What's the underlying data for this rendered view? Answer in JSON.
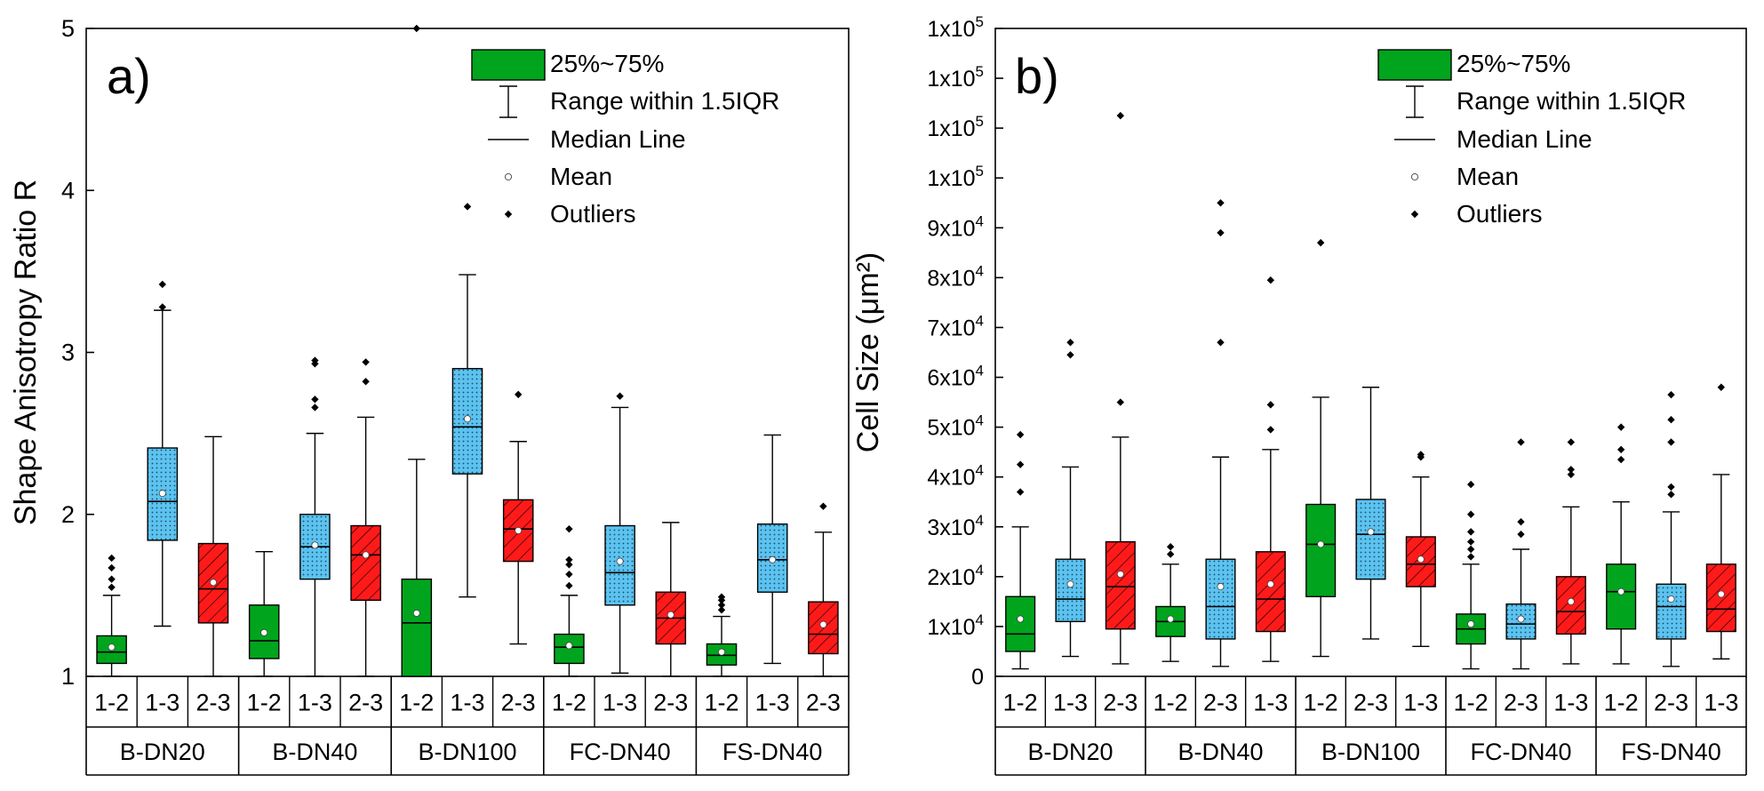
{
  "colors": {
    "green": "#00a51d",
    "blue": "#5cc3f0",
    "red": "#ff1a1a",
    "stroke": "#000000",
    "background": "#ffffff"
  },
  "chart_data": [
    {
      "type": "box",
      "panel_label": "a)",
      "ylabel": "Shape Anisotropy Ratio R",
      "ylim": [
        1,
        5
      ],
      "yticks": [
        1,
        2,
        3,
        4,
        5
      ],
      "ytick_labels": [
        "1",
        "2",
        "3",
        "4",
        "5"
      ],
      "legend": {
        "box": "25%~75%",
        "whisker": "Range within 1.5IQR",
        "median": "Median Line",
        "mean": "Mean",
        "outliers": "Outliers"
      },
      "groups": [
        {
          "name": "B-DN20",
          "boxes": [
            {
              "label": "1-2",
              "color": "green",
              "q1": 1.08,
              "median": 1.15,
              "q3": 1.25,
              "mean": 1.18,
              "whisker_low": 1.0,
              "whisker_high": 1.5,
              "outliers": [
                1.55,
                1.6,
                1.67,
                1.73
              ]
            },
            {
              "label": "1-3",
              "color": "blue",
              "q1": 1.84,
              "median": 2.08,
              "q3": 2.41,
              "mean": 2.13,
              "whisker_low": 1.31,
              "whisker_high": 3.26,
              "outliers": [
                3.28,
                3.42
              ]
            },
            {
              "label": "2-3",
              "color": "red",
              "q1": 1.33,
              "median": 1.54,
              "q3": 1.82,
              "mean": 1.58,
              "whisker_low": 1.0,
              "whisker_high": 2.48,
              "outliers": []
            }
          ]
        },
        {
          "name": "B-DN40",
          "boxes": [
            {
              "label": "1-2",
              "color": "green",
              "q1": 1.11,
              "median": 1.22,
              "q3": 1.44,
              "mean": 1.27,
              "whisker_low": 1.0,
              "whisker_high": 1.77,
              "outliers": []
            },
            {
              "label": "1-3",
              "color": "blue",
              "q1": 1.6,
              "median": 1.8,
              "q3": 2.0,
              "mean": 1.81,
              "whisker_low": 1.0,
              "whisker_high": 2.5,
              "outliers": [
                2.66,
                2.71,
                2.93,
                2.95
              ]
            },
            {
              "label": "2-3",
              "color": "red",
              "q1": 1.47,
              "median": 1.75,
              "q3": 1.93,
              "mean": 1.75,
              "whisker_low": 1.0,
              "whisker_high": 2.6,
              "outliers": [
                2.82,
                2.94
              ]
            }
          ]
        },
        {
          "name": "B-DN100",
          "boxes": [
            {
              "label": "1-2",
              "color": "green",
              "q1": 1.0,
              "median": 1.33,
              "q3": 1.6,
              "mean": 1.39,
              "whisker_low": 1.0,
              "whisker_high": 2.34,
              "outliers": [
                5.0
              ]
            },
            {
              "label": "1-3",
              "color": "blue",
              "q1": 2.25,
              "median": 2.54,
              "q3": 2.9,
              "mean": 2.59,
              "whisker_low": 1.49,
              "whisker_high": 3.48,
              "outliers": [
                3.9
              ]
            },
            {
              "label": "2-3",
              "color": "red",
              "q1": 1.71,
              "median": 1.91,
              "q3": 2.09,
              "mean": 1.9,
              "whisker_low": 1.2,
              "whisker_high": 2.45,
              "outliers": [
                2.74
              ]
            }
          ]
        },
        {
          "name": "FC-DN40",
          "boxes": [
            {
              "label": "1-2",
              "color": "green",
              "q1": 1.08,
              "median": 1.18,
              "q3": 1.26,
              "mean": 1.19,
              "whisker_low": 1.0,
              "whisker_high": 1.5,
              "outliers": [
                1.56,
                1.63,
                1.69,
                1.72,
                1.91
              ]
            },
            {
              "label": "1-3",
              "color": "blue",
              "q1": 1.44,
              "median": 1.64,
              "q3": 1.93,
              "mean": 1.71,
              "whisker_low": 1.02,
              "whisker_high": 2.66,
              "outliers": [
                2.73
              ]
            },
            {
              "label": "2-3",
              "color": "red",
              "q1": 1.2,
              "median": 1.36,
              "q3": 1.52,
              "mean": 1.38,
              "whisker_low": 1.0,
              "whisker_high": 1.95,
              "outliers": []
            }
          ]
        },
        {
          "name": "FS-DN40",
          "boxes": [
            {
              "label": "1-2",
              "color": "green",
              "q1": 1.07,
              "median": 1.13,
              "q3": 1.2,
              "mean": 1.15,
              "whisker_low": 1.0,
              "whisker_high": 1.37,
              "outliers": [
                1.41,
                1.44,
                1.47,
                1.49
              ]
            },
            {
              "label": "1-3",
              "color": "blue",
              "q1": 1.52,
              "median": 1.72,
              "q3": 1.94,
              "mean": 1.72,
              "whisker_low": 1.08,
              "whisker_high": 2.49,
              "outliers": []
            },
            {
              "label": "2-3",
              "color": "red",
              "q1": 1.14,
              "median": 1.26,
              "q3": 1.46,
              "mean": 1.32,
              "whisker_low": 1.0,
              "whisker_high": 1.89,
              "outliers": [
                2.05
              ]
            }
          ]
        }
      ]
    },
    {
      "type": "box",
      "panel_label": "b)",
      "ylabel": "Cell Size (μm²)",
      "ylim": [
        0,
        130000
      ],
      "yticks": [
        0,
        10000,
        20000,
        30000,
        40000,
        50000,
        60000,
        70000,
        80000,
        90000,
        100000,
        110000,
        120000,
        130000
      ],
      "ytick_labels": [
        {
          "base": "0",
          "exp": ""
        },
        {
          "base": "1x10",
          "exp": "4"
        },
        {
          "base": "2x10",
          "exp": "4"
        },
        {
          "base": "3x10",
          "exp": "4"
        },
        {
          "base": "4x10",
          "exp": "4"
        },
        {
          "base": "5x10",
          "exp": "4"
        },
        {
          "base": "6x10",
          "exp": "4"
        },
        {
          "base": "7x10",
          "exp": "4"
        },
        {
          "base": "8x10",
          "exp": "4"
        },
        {
          "base": "9x10",
          "exp": "4"
        },
        {
          "base": "1x10",
          "exp": "5"
        },
        {
          "base": "1x10",
          "exp": "5"
        },
        {
          "base": "1x10",
          "exp": "5"
        },
        {
          "base": "1x10",
          "exp": "5"
        }
      ],
      "legend": {
        "box": "25%~75%",
        "whisker": "Range within 1.5IQR",
        "median": "Median Line",
        "mean": "Mean",
        "outliers": "Outliers"
      },
      "groups": [
        {
          "name": "B-DN20",
          "boxes": [
            {
              "label": "1-2",
              "color": "green",
              "q1": 5000,
              "median": 8500,
              "q3": 16000,
              "mean": 11500,
              "whisker_low": 1500,
              "whisker_high": 30000,
              "outliers": [
                37000,
                42500,
                48500
              ]
            },
            {
              "label": "1-3",
              "color": "blue",
              "q1": 11000,
              "median": 15500,
              "q3": 23500,
              "mean": 18500,
              "whisker_low": 4000,
              "whisker_high": 42000,
              "outliers": [
                64500,
                67000
              ]
            },
            {
              "label": "2-3",
              "color": "red",
              "q1": 9500,
              "median": 18000,
              "q3": 27000,
              "mean": 20500,
              "whisker_low": 2500,
              "whisker_high": 48000,
              "outliers": [
                55000,
                112500
              ]
            }
          ]
        },
        {
          "name": "B-DN40",
          "boxes": [
            {
              "label": "1-2",
              "color": "green",
              "q1": 8000,
              "median": 11000,
              "q3": 14000,
              "mean": 11500,
              "whisker_low": 3000,
              "whisker_high": 22500,
              "outliers": [
                24500,
                26000
              ]
            },
            {
              "label": "2-3",
              "color": "blue",
              "q1": 7500,
              "median": 14000,
              "q3": 23500,
              "mean": 18000,
              "whisker_low": 2000,
              "whisker_high": 44000,
              "outliers": [
                67000,
                89000,
                95000
              ]
            },
            {
              "label": "1-3",
              "color": "red",
              "q1": 9000,
              "median": 15500,
              "q3": 25000,
              "mean": 18500,
              "whisker_low": 3000,
              "whisker_high": 45500,
              "outliers": [
                49500,
                54500,
                79500
              ]
            }
          ]
        },
        {
          "name": "B-DN100",
          "boxes": [
            {
              "label": "1-2",
              "color": "green",
              "q1": 16000,
              "median": 26500,
              "q3": 34500,
              "mean": 26500,
              "whisker_low": 4000,
              "whisker_high": 56000,
              "outliers": [
                87000
              ]
            },
            {
              "label": "2-3",
              "color": "blue",
              "q1": 19500,
              "median": 28500,
              "q3": 35500,
              "mean": 29000,
              "whisker_low": 7500,
              "whisker_high": 58000,
              "outliers": []
            },
            {
              "label": "1-3",
              "color": "red",
              "q1": 18000,
              "median": 22500,
              "q3": 28000,
              "mean": 23500,
              "whisker_low": 6000,
              "whisker_high": 40000,
              "outliers": [
                44000,
                44500
              ]
            }
          ]
        },
        {
          "name": "FC-DN40",
          "boxes": [
            {
              "label": "1-2",
              "color": "green",
              "q1": 6500,
              "median": 9500,
              "q3": 12500,
              "mean": 10500,
              "whisker_low": 1500,
              "whisker_high": 22500,
              "outliers": [
                24000,
                25500,
                27000,
                29000,
                32500,
                38500
              ]
            },
            {
              "label": "2-3",
              "color": "blue",
              "q1": 7500,
              "median": 10500,
              "q3": 14500,
              "mean": 11500,
              "whisker_low": 1500,
              "whisker_high": 25500,
              "outliers": [
                28500,
                31000,
                47000
              ]
            },
            {
              "label": "1-3",
              "color": "red",
              "q1": 8500,
              "median": 13000,
              "q3": 20000,
              "mean": 15000,
              "whisker_low": 2500,
              "whisker_high": 34000,
              "outliers": [
                40500,
                41500,
                47000
              ]
            }
          ]
        },
        {
          "name": "FS-DN40",
          "boxes": [
            {
              "label": "1-2",
              "color": "green",
              "q1": 9500,
              "median": 17000,
              "q3": 22500,
              "mean": 17000,
              "whisker_low": 2500,
              "whisker_high": 35000,
              "outliers": [
                43500,
                45500,
                50000
              ]
            },
            {
              "label": "2-3",
              "color": "blue",
              "q1": 7500,
              "median": 14000,
              "q3": 18500,
              "mean": 15500,
              "whisker_low": 2000,
              "whisker_high": 33000,
              "outliers": [
                36500,
                38000,
                47000,
                51500,
                56500
              ]
            },
            {
              "label": "1-3",
              "color": "red",
              "q1": 9000,
              "median": 13500,
              "q3": 22500,
              "mean": 16500,
              "whisker_low": 3500,
              "whisker_high": 40500,
              "outliers": [
                58000
              ]
            }
          ]
        }
      ]
    }
  ]
}
